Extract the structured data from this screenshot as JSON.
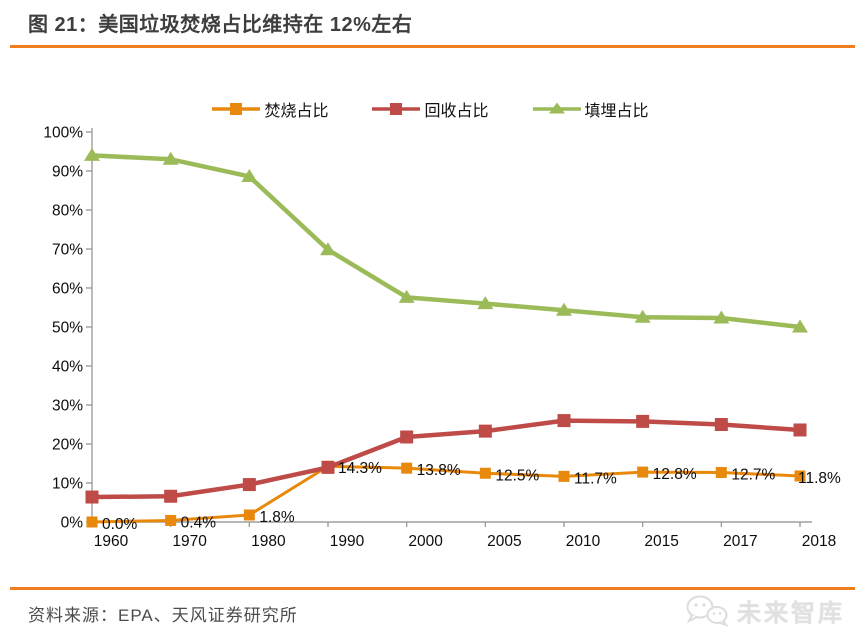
{
  "page": {
    "title": "图 21：美国垃圾焚烧占比维持在 12%左右",
    "source": "资料来源：EPA、天风证券研究所",
    "watermark": "未来智库",
    "accent_color": "#f07e1e"
  },
  "chart_data": {
    "type": "line",
    "title": "美国垃圾焚烧占比维持在 12%左右",
    "categories": [
      "1960",
      "1970",
      "1980",
      "1990",
      "2000",
      "2005",
      "2010",
      "2015",
      "2017",
      "2018"
    ],
    "series": [
      {
        "name": "焚烧占比",
        "color": "#e8890c",
        "marker": "square",
        "values": [
          0.0,
          0.4,
          1.8,
          14.3,
          13.8,
          12.5,
          11.7,
          12.8,
          12.7,
          11.8
        ],
        "labels": [
          "0.0%",
          "0.4%",
          "1.8%",
          "14.3%",
          "13.8%",
          "12.5%",
          "11.7%",
          "12.8%",
          "12.7%",
          "11.8%"
        ]
      },
      {
        "name": "回收占比",
        "color": "#be4b48",
        "marker": "square",
        "values": [
          6.4,
          6.6,
          9.6,
          14.0,
          21.8,
          23.3,
          26.0,
          25.8,
          25.0,
          23.6
        ],
        "labels": []
      },
      {
        "name": "填埋占比",
        "color": "#9bbb59",
        "marker": "triangle",
        "values": [
          94.0,
          93.0,
          88.6,
          69.8,
          57.6,
          56.0,
          54.3,
          52.5,
          52.3,
          50.0
        ],
        "labels": []
      }
    ],
    "xlabel": "",
    "ylabel": "",
    "ylim": [
      0,
      100
    ],
    "y_ticks": [
      "0%",
      "10%",
      "20%",
      "30%",
      "40%",
      "50%",
      "60%",
      "70%",
      "80%",
      "90%",
      "100%"
    ],
    "grid": false,
    "legend_position": "top"
  }
}
